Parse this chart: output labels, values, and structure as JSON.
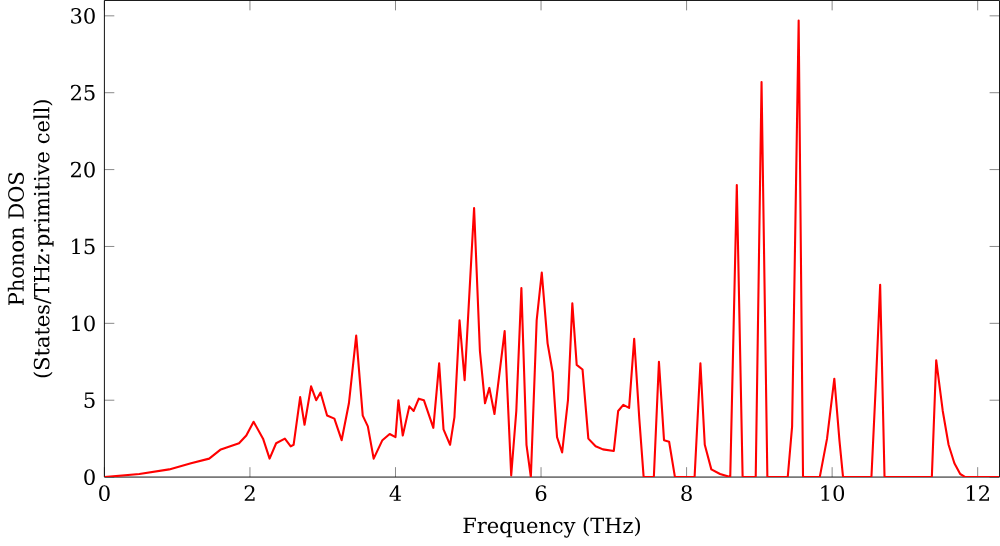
{
  "chart_data": {
    "type": "line",
    "xlabel": "Frequency (THz)",
    "ylabel": "Phonon DOS (States/THz·primitive cell)",
    "xlim": [
      0,
      12.3
    ],
    "ylim": [
      0,
      31
    ],
    "xticks": [
      0,
      2,
      4,
      6,
      8,
      10,
      12
    ],
    "yticks": [
      0,
      5,
      10,
      15,
      20,
      25,
      30
    ],
    "marker": "none",
    "line_style": "solid",
    "series": [
      {
        "color": "#ff0000",
        "x": [
          0,
          0.48,
          0.89,
          1.19,
          1.44,
          1.6,
          1.85,
          1.95,
          2.05,
          2.18,
          2.27,
          2.36,
          2.48,
          2.56,
          2.6,
          2.69,
          2.75,
          2.84,
          2.91,
          2.97,
          3.06,
          3.16,
          3.26,
          3.36,
          3.46,
          3.55,
          3.62,
          3.7,
          3.82,
          3.92,
          4.0,
          4.04,
          4.1,
          4.19,
          4.25,
          4.32,
          4.39,
          4.52,
          4.6,
          4.66,
          4.75,
          4.81,
          4.88,
          4.95,
          5.08,
          5.16,
          5.23,
          5.29,
          5.36,
          5.5,
          5.59,
          5.66,
          5.73,
          5.8,
          5.86,
          5.94,
          6.01,
          6.09,
          6.16,
          6.22,
          6.29,
          6.37,
          6.43,
          6.49,
          6.57,
          6.65,
          6.75,
          6.85,
          7.0,
          7.06,
          7.13,
          7.21,
          7.28,
          7.35,
          7.41,
          7.55,
          7.62,
          7.69,
          7.76,
          7.84,
          8.11,
          8.19,
          8.25,
          8.34,
          8.46,
          8.6,
          8.69,
          8.77,
          8.95,
          9.03,
          9.11,
          9.39,
          9.45,
          9.54,
          9.6,
          9.83,
          9.93,
          10.03,
          10.1,
          10.15,
          10.54,
          10.6,
          10.66,
          10.72,
          11.37,
          11.43,
          11.52,
          11.6,
          11.68,
          11.76,
          11.83,
          12.3
        ],
        "values": [
          0,
          0.2,
          0.5,
          0.9,
          1.2,
          1.8,
          2.2,
          2.7,
          3.6,
          2.5,
          1.2,
          2.2,
          2.5,
          2.0,
          2.1,
          5.2,
          3.4,
          5.9,
          5.0,
          5.5,
          4.0,
          3.8,
          2.4,
          4.8,
          9.2,
          4.0,
          3.3,
          1.2,
          2.4,
          2.8,
          2.6,
          5.0,
          2.7,
          4.6,
          4.3,
          5.1,
          5.0,
          3.2,
          7.4,
          3.1,
          2.1,
          3.9,
          10.2,
          6.3,
          17.5,
          8.2,
          4.8,
          5.8,
          4.1,
          9.5,
          0.1,
          4.3,
          12.3,
          2.1,
          0,
          10.2,
          13.3,
          8.7,
          6.8,
          2.6,
          1.6,
          5.0,
          11.3,
          7.3,
          7.0,
          2.5,
          2.0,
          1.8,
          1.7,
          4.3,
          4.7,
          4.5,
          9.0,
          3.8,
          0,
          0,
          7.5,
          2.4,
          2.3,
          0,
          0,
          7.4,
          2.1,
          0.5,
          0.2,
          0,
          19.0,
          0,
          0,
          25.7,
          0,
          0,
          3.3,
          29.7,
          0,
          0,
          2.5,
          6.4,
          2.4,
          0,
          0,
          6.0,
          12.5,
          0,
          0,
          7.6,
          4.3,
          2.1,
          0.9,
          0.2,
          0,
          0
        ]
      }
    ]
  }
}
